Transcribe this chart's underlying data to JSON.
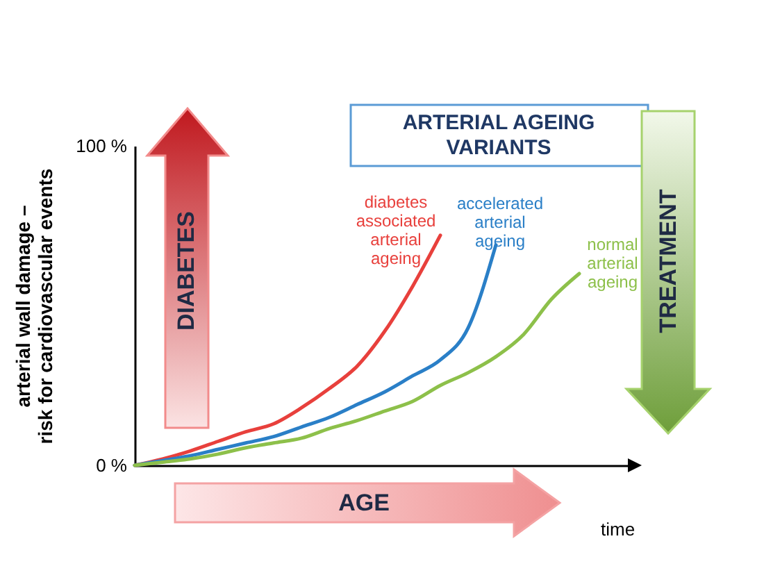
{
  "chart_data": {
    "type": "line",
    "title": "ARTERIAL AGEING VARIANTS",
    "xlabel": "time",
    "ylabel": "arterial wall damage – risk for cardiovascular events",
    "categories": [
      null,
      null,
      null,
      null,
      null,
      null,
      null,
      null,
      null,
      null,
      null,
      null,
      null,
      null,
      null,
      null,
      null,
      null,
      null
    ],
    "ylim": [
      0,
      100
    ],
    "yticks": [
      {
        "value": 0,
        "label": "0 %"
      },
      {
        "value": 100,
        "label": "100 %"
      }
    ],
    "grid": false,
    "legend": false,
    "marker": "none",
    "line_style": "solid",
    "annotations": [
      "DIABETES",
      "TREATMENT",
      "AGE"
    ],
    "series": [
      {
        "name": "diabetes associated arterial ageing",
        "color": "#e8403c",
        "values": [
          0,
          2,
          4.5,
          7.5,
          10.5,
          13,
          18,
          24,
          31,
          42,
          56,
          72,
          null,
          null,
          null,
          null,
          null,
          null,
          null
        ]
      },
      {
        "name": "accelerated arterial ageing",
        "color": "#2a7fc7",
        "values": [
          0,
          1.5,
          3,
          5,
          7,
          9,
          12,
          15,
          19,
          23,
          28,
          33,
          43,
          69,
          null,
          null,
          null,
          null,
          null
        ]
      },
      {
        "name": "normal arterial ageing",
        "color": "#8dc04a",
        "values": [
          0,
          1,
          2,
          3.5,
          5.5,
          7,
          8.5,
          11.5,
          14,
          17,
          20,
          25,
          29,
          34,
          41,
          52,
          60,
          null,
          null
        ]
      }
    ]
  }
}
